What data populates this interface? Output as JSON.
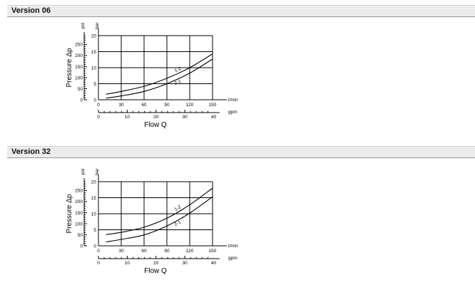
{
  "sections": [
    {
      "title": "Version 06"
    },
    {
      "title": "Version 32"
    }
  ],
  "chart_data": [
    {
      "type": "line",
      "title": "Version 06",
      "xlabel": "Flow Q",
      "ylabel": "Pressure Δp",
      "x_unit_primary": "l/min",
      "x_unit_secondary": "gpm",
      "y_unit_primary": "bar",
      "y_unit_secondary": "psi",
      "xlim": [
        0,
        150
      ],
      "ylim": [
        0,
        20
      ],
      "x_ticks": [
        0,
        30,
        60,
        90,
        120,
        150
      ],
      "x_ticks_secondary": [
        0,
        10,
        20,
        30,
        40
      ],
      "y_ticks": [
        0,
        5,
        10,
        15,
        20
      ],
      "y_ticks_secondary": [
        0,
        50,
        100,
        150,
        200,
        250
      ],
      "grid": true,
      "series": [
        {
          "name": "1-2",
          "x": [
            10,
            30,
            60,
            90,
            120,
            150
          ],
          "y": [
            1.7,
            2.6,
            4.2,
            6.7,
            10.0,
            14.3
          ]
        },
        {
          "name": "2-1",
          "x": [
            10,
            30,
            60,
            90,
            120,
            150
          ],
          "y": [
            0.5,
            1.2,
            2.6,
            5.0,
            8.3,
            12.7
          ]
        }
      ]
    },
    {
      "type": "line",
      "title": "Version 32",
      "xlabel": "Flow Q",
      "ylabel": "Pressure Δp",
      "x_unit_primary": "l/min",
      "x_unit_secondary": "gpm",
      "y_unit_primary": "bar",
      "y_unit_secondary": "psi",
      "xlim": [
        0,
        150
      ],
      "ylim": [
        0,
        20
      ],
      "x_ticks": [
        0,
        30,
        60,
        90,
        120,
        150
      ],
      "x_ticks_secondary": [
        0,
        10,
        20,
        30,
        40
      ],
      "y_ticks": [
        0,
        5,
        10,
        15,
        20
      ],
      "y_ticks_secondary": [
        0,
        50,
        100,
        150,
        200,
        250
      ],
      "grid": true,
      "series": [
        {
          "name": "1-2",
          "x": [
            10,
            30,
            60,
            90,
            120,
            150
          ],
          "y": [
            3.5,
            4.2,
            5.8,
            8.6,
            12.8,
            18.0
          ]
        },
        {
          "name": "2-1",
          "x": [
            10,
            30,
            60,
            90,
            120,
            150
          ],
          "y": [
            1.2,
            2.0,
            3.4,
            6.2,
            10.2,
            15.3
          ]
        }
      ]
    }
  ]
}
